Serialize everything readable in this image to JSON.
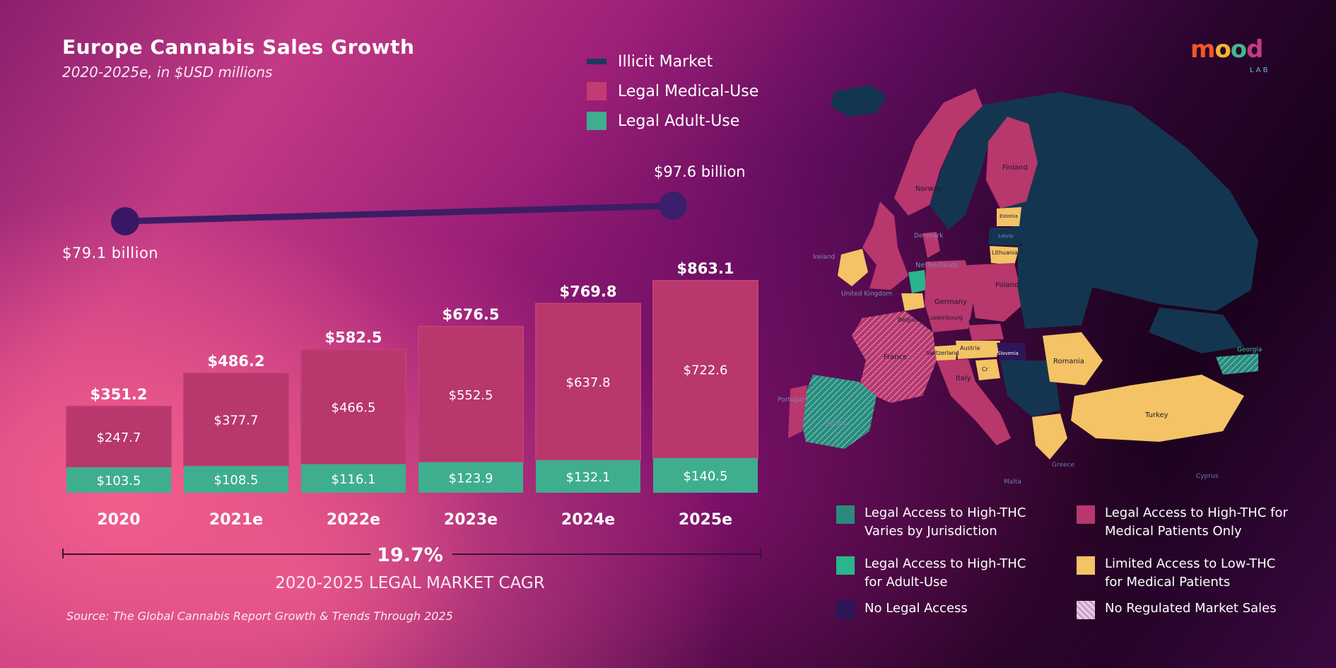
{
  "header": {
    "title": "Europe Cannabis Sales Growth",
    "subtitle": "2020-2025e, in $USD millions"
  },
  "legend": {
    "items": [
      {
        "label": "Illicit Market",
        "color": "#1d3a5c"
      },
      {
        "label": "Legal Medical-Use",
        "color": "#c23c72"
      },
      {
        "label": "Legal Adult-Use",
        "color": "#3fae8f"
      }
    ]
  },
  "illicit": {
    "start_label": "$79.1 billion",
    "end_label": "$97.6 billion",
    "start_value": 79.1,
    "end_value": 97.6
  },
  "chart_data": {
    "type": "bar",
    "title": "Europe Cannabis Sales Growth",
    "subtitle": "2020-2025e, in $USD millions",
    "categories": [
      "2020",
      "2021e",
      "2022e",
      "2023e",
      "2024e",
      "2025e"
    ],
    "series": [
      {
        "name": "Legal Adult-Use",
        "values": [
          103.5,
          108.5,
          116.1,
          123.9,
          132.1,
          140.5
        ],
        "labels": [
          "$103.5",
          "$108.5",
          "$116.1",
          "$123.9",
          "$132.1",
          "$140.5"
        ],
        "color": "#3fae8f"
      },
      {
        "name": "Legal Medical-Use",
        "values": [
          247.7,
          377.7,
          466.5,
          552.5,
          637.8,
          722.6
        ],
        "labels": [
          "$247.7",
          "$377.7",
          "$466.5",
          "$552.5",
          "$637.8",
          "$722.6"
        ],
        "color": "#b8376d"
      }
    ],
    "totals": [
      351.2,
      486.2,
      582.5,
      676.5,
      769.8,
      863.1
    ],
    "total_labels": [
      "$351.2",
      "$486.2",
      "$582.5",
      "$676.5",
      "$769.8",
      "$863.1"
    ],
    "stacked": true,
    "ylim": [
      0,
      900
    ]
  },
  "cagr": {
    "value": "19.7%",
    "label": "2020-2025 LEGAL MARKET CAGR"
  },
  "source": "Source: The Global Cannabis Report Growth & Trends Through 2025",
  "logo": {
    "word": "mood",
    "sub": "LAB"
  },
  "map": {
    "colors": {
      "varies": "#2a8a7e",
      "adult": "#2ab58c",
      "none": "#2d1557",
      "medical": "#b8376d",
      "lowthc": "#f3c365",
      "unregulated": "#c9a0c6",
      "illicit_region": "#143550"
    },
    "country_labels": [
      "Finland",
      "Norway",
      "Estonia",
      "Denmark",
      "Latvia",
      "Lithuania",
      "Ireland",
      "Netherlands",
      "Poland",
      "United Kingdom",
      "Germany",
      "Belgium",
      "Luxembourg",
      "Czech",
      "France",
      "Switzerland",
      "Austria",
      "Slovenia",
      "Cr",
      "Romania",
      "Georgia",
      "Italy",
      "Portugal",
      "Spain",
      "Turkey",
      "Greece",
      "Malta",
      "Cyprus"
    ]
  },
  "map_legend": [
    {
      "text": "Legal Access to High-THC Varies by Jurisdiction",
      "color": "#2a8a7e"
    },
    {
      "text": "Legal Access to High-THC for Medical Patients Only",
      "color": "#b8376d"
    },
    {
      "text": "Legal Access to High-THC for Adult-Use",
      "color": "#2ab58c"
    },
    {
      "text": "Limited Access to Low-THC for Medical Patients",
      "color": "#f3c365"
    },
    {
      "text": "No Legal Access",
      "color": "#2d1557"
    },
    {
      "text": "No Regulated Market Sales",
      "color": "#c9a0c6"
    }
  ]
}
